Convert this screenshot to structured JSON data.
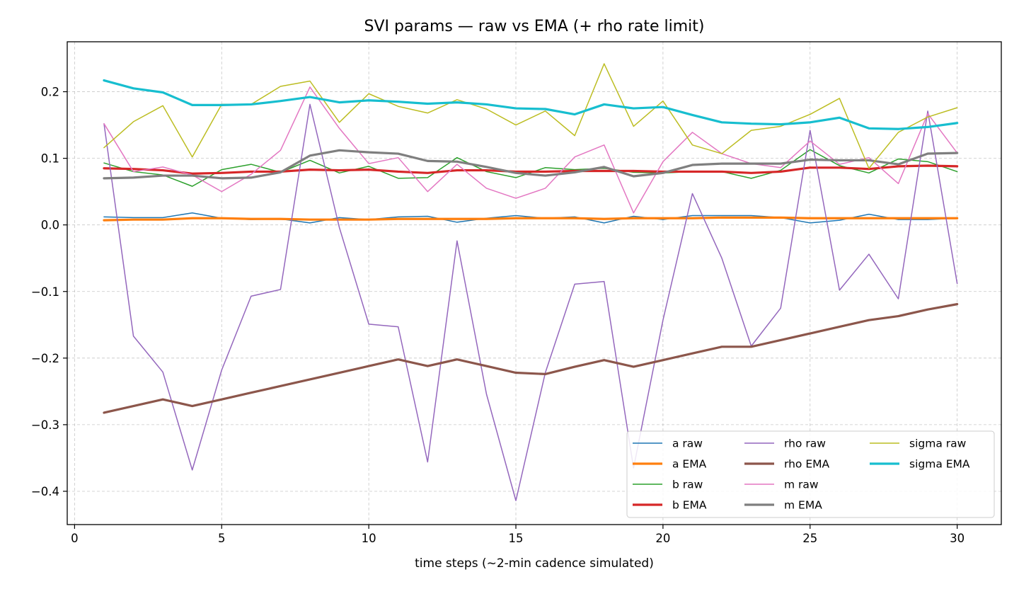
{
  "chart_data": {
    "type": "line",
    "title": "SVI params — raw vs EMA (+ rho rate limit)",
    "xlabel": "time steps (~2-min cadence simulated)",
    "ylabel": "",
    "xlim": [
      -0.25,
      31.5
    ],
    "ylim": [
      -0.45,
      0.275
    ],
    "grid": true,
    "legend_position": "lower-right",
    "legend_columns": 3,
    "x_ticks": [
      0,
      5,
      10,
      15,
      20,
      25,
      30
    ],
    "x_tick_labels": [
      "0",
      "5",
      "10",
      "15",
      "20",
      "25",
      "30"
    ],
    "y_ticks": [
      -0.4,
      -0.3,
      -0.2,
      -0.1,
      0.0,
      0.1,
      0.2
    ],
    "y_tick_labels": [
      "−0.4",
      "−0.3",
      "−0.2",
      "−0.1",
      "0.0",
      "0.1",
      "0.2"
    ],
    "x": [
      1,
      2,
      3,
      4,
      5,
      6,
      7,
      8,
      9,
      10,
      11,
      12,
      13,
      14,
      15,
      16,
      17,
      18,
      19,
      20,
      21,
      22,
      23,
      24,
      25,
      26,
      27,
      28,
      29,
      30
    ],
    "series": [
      {
        "name": "a raw",
        "color": "#1f77b4",
        "style": "raw",
        "values": [
          0.012,
          0.011,
          0.011,
          0.018,
          0.01,
          0.008,
          0.009,
          0.003,
          0.011,
          0.008,
          0.012,
          0.013,
          0.004,
          0.01,
          0.014,
          0.01,
          0.012,
          0.003,
          0.013,
          0.008,
          0.014,
          0.014,
          0.014,
          0.011,
          0.003,
          0.007,
          0.016,
          0.008,
          0.008,
          0.01
        ]
      },
      {
        "name": "a EMA",
        "color": "#ff7f0e",
        "style": "ema",
        "values": [
          0.007,
          0.008,
          0.008,
          0.01,
          0.01,
          0.009,
          0.009,
          0.008,
          0.008,
          0.008,
          0.009,
          0.009,
          0.009,
          0.009,
          0.01,
          0.01,
          0.01,
          0.009,
          0.01,
          0.01,
          0.01,
          0.011,
          0.011,
          0.011,
          0.01,
          0.01,
          0.01,
          0.01,
          0.01,
          0.01
        ]
      },
      {
        "name": "b raw",
        "color": "#2ca02c",
        "style": "raw",
        "values": [
          0.093,
          0.08,
          0.075,
          0.058,
          0.083,
          0.091,
          0.079,
          0.097,
          0.078,
          0.088,
          0.07,
          0.071,
          0.101,
          0.08,
          0.071,
          0.086,
          0.083,
          0.085,
          0.079,
          0.078,
          0.08,
          0.08,
          0.07,
          0.082,
          0.113,
          0.089,
          0.078,
          0.099,
          0.095,
          0.08
        ]
      },
      {
        "name": "b EMA",
        "color": "#d62728",
        "style": "ema",
        "values": [
          0.085,
          0.084,
          0.082,
          0.077,
          0.078,
          0.08,
          0.08,
          0.083,
          0.082,
          0.083,
          0.08,
          0.078,
          0.082,
          0.082,
          0.08,
          0.08,
          0.081,
          0.081,
          0.081,
          0.08,
          0.08,
          0.08,
          0.078,
          0.08,
          0.086,
          0.086,
          0.084,
          0.088,
          0.089,
          0.088
        ]
      },
      {
        "name": "rho raw",
        "color": "#9467bd",
        "style": "raw",
        "values": [
          0.152,
          -0.167,
          -0.221,
          -0.368,
          -0.218,
          -0.107,
          -0.097,
          0.181,
          -0.004,
          -0.149,
          -0.153,
          -0.356,
          -0.024,
          -0.254,
          -0.414,
          -0.222,
          -0.089,
          -0.085,
          -0.365,
          -0.143,
          0.047,
          -0.05,
          -0.182,
          -0.125,
          0.142,
          -0.098,
          -0.044,
          -0.111,
          0.171,
          -0.088
        ]
      },
      {
        "name": "rho EMA",
        "color": "#8c564b",
        "style": "ema",
        "values": [
          -0.282,
          -0.272,
          -0.262,
          -0.272,
          -0.262,
          -0.252,
          -0.242,
          -0.232,
          -0.222,
          -0.212,
          -0.202,
          -0.212,
          -0.202,
          -0.212,
          -0.222,
          -0.224,
          -0.213,
          -0.203,
          -0.213,
          -0.203,
          -0.193,
          -0.183,
          -0.183,
          -0.173,
          -0.163,
          -0.153,
          -0.143,
          -0.137,
          -0.127,
          -0.119
        ]
      },
      {
        "name": "m raw",
        "color": "#e377c2",
        "style": "raw",
        "values": [
          0.152,
          0.08,
          0.087,
          0.075,
          0.05,
          0.076,
          0.112,
          0.207,
          0.145,
          0.092,
          0.101,
          0.05,
          0.091,
          0.055,
          0.04,
          0.055,
          0.102,
          0.12,
          0.018,
          0.095,
          0.139,
          0.107,
          0.092,
          0.086,
          0.126,
          0.091,
          0.101,
          0.062,
          0.167,
          0.108
        ]
      },
      {
        "name": "m EMA",
        "color": "#7f7f7f",
        "style": "ema",
        "values": [
          0.07,
          0.071,
          0.074,
          0.074,
          0.07,
          0.071,
          0.079,
          0.104,
          0.112,
          0.109,
          0.107,
          0.096,
          0.095,
          0.087,
          0.078,
          0.074,
          0.079,
          0.087,
          0.073,
          0.078,
          0.09,
          0.092,
          0.092,
          0.092,
          0.098,
          0.097,
          0.097,
          0.091,
          0.107,
          0.108
        ]
      },
      {
        "name": "sigma raw",
        "color": "#bcbd22",
        "style": "raw",
        "values": [
          0.116,
          0.155,
          0.179,
          0.102,
          0.181,
          0.181,
          0.208,
          0.216,
          0.154,
          0.197,
          0.178,
          0.168,
          0.188,
          0.174,
          0.15,
          0.171,
          0.134,
          0.242,
          0.148,
          0.186,
          0.12,
          0.107,
          0.142,
          0.148,
          0.166,
          0.19,
          0.085,
          0.139,
          0.162,
          0.176
        ]
      },
      {
        "name": "sigma EMA",
        "color": "#17becf",
        "style": "ema",
        "values": [
          0.217,
          0.205,
          0.199,
          0.18,
          0.18,
          0.181,
          0.186,
          0.192,
          0.184,
          0.187,
          0.185,
          0.182,
          0.184,
          0.181,
          0.175,
          0.174,
          0.166,
          0.181,
          0.175,
          0.177,
          0.165,
          0.154,
          0.152,
          0.151,
          0.154,
          0.161,
          0.145,
          0.144,
          0.147,
          0.153
        ]
      }
    ]
  }
}
